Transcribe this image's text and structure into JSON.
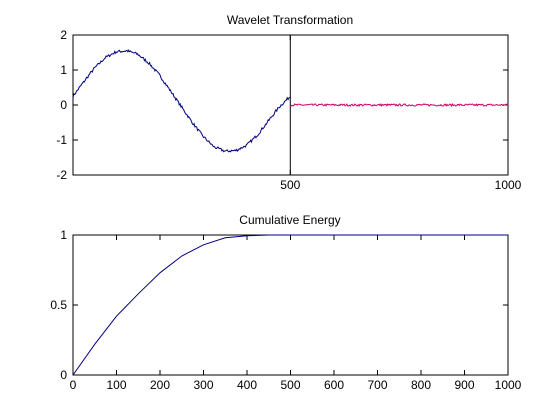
{
  "chart_data": [
    {
      "type": "line",
      "title": "Wavelet Transformation",
      "xlabel": "",
      "ylabel": "",
      "xlim": [
        1,
        1000
      ],
      "ylim": [
        -2,
        2
      ],
      "xticks": [
        500,
        1000
      ],
      "yticks": [
        2,
        1,
        0,
        -1,
        -2
      ],
      "divider_x": 500,
      "grid": false,
      "series": [
        {
          "color": "#000080",
          "description_points": {
            "x": [
              1,
              25,
              50,
              75,
              100,
              125,
              150,
              175,
              200,
              225,
              250,
              275,
              300,
              325,
              350,
              375,
              400,
              425,
              450,
              475,
              500
            ],
            "y": [
              0.25,
              0.65,
              1.05,
              1.35,
              1.52,
              1.55,
              1.45,
              1.2,
              0.85,
              0.4,
              -0.05,
              -0.5,
              -0.9,
              -1.2,
              -1.32,
              -1.3,
              -1.15,
              -0.85,
              -0.45,
              -0.05,
              0.25
            ]
          },
          "noise": 0.04
        },
        {
          "color": "#cc0066",
          "description_points": {
            "x": [
              500,
              1000
            ],
            "y": [
              0.0,
              0.0
            ]
          },
          "noise": 0.03
        }
      ]
    },
    {
      "type": "line",
      "title": "Cumulative Energy",
      "xlabel": "",
      "ylabel": "",
      "xlim": [
        0,
        1000
      ],
      "ylim": [
        0,
        1
      ],
      "xticks": [
        0,
        100,
        200,
        300,
        400,
        500,
        600,
        700,
        800,
        900,
        1000
      ],
      "yticks": [
        1,
        0.5,
        0
      ],
      "grid": false,
      "series": [
        {
          "color": "#000080",
          "x": [
            0,
            50,
            100,
            150,
            200,
            250,
            300,
            350,
            400,
            450,
            500,
            600,
            700,
            800,
            900,
            1000
          ],
          "y": [
            0,
            0.22,
            0.42,
            0.58,
            0.73,
            0.85,
            0.93,
            0.98,
            0.995,
            1.0,
            1.0,
            1.0,
            1.0,
            1.0,
            1.0,
            1.0
          ]
        }
      ]
    }
  ]
}
